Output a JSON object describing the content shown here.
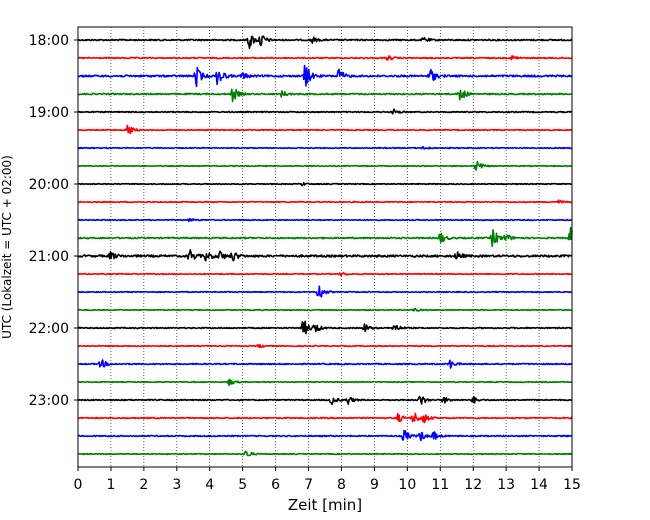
{
  "chart_data": {
    "type": "line",
    "title": "",
    "xlabel": "Zeit  [min]",
    "ylabel": "UTC (Lokalzeit = UTC + 02:00)",
    "xlim": [
      0,
      15
    ],
    "x_ticks": [
      0,
      1,
      2,
      3,
      4,
      5,
      6,
      7,
      8,
      9,
      10,
      11,
      12,
      13,
      14,
      15
    ],
    "y_tick_labels": [
      "18:00",
      "19:00",
      "20:00",
      "21:00",
      "22:00",
      "23:00"
    ],
    "grid": "vertical dotted",
    "trace_interval_minutes": 15,
    "trace_colors": [
      "#000000",
      "#ff0000",
      "#0000ff",
      "#008000"
    ],
    "traces": [
      {
        "start": "18:00",
        "color": "#000000",
        "level": 0.3,
        "events": [
          {
            "t": 5.2,
            "amp": 1.0
          },
          {
            "t": 5.55,
            "amp": 0.8
          },
          {
            "t": 7.1,
            "amp": 0.4
          },
          {
            "t": 10.5,
            "amp": 0.3
          }
        ]
      },
      {
        "start": "18:15",
        "color": "#ff0000",
        "level": 0.25,
        "events": [
          {
            "t": 9.4,
            "amp": 0.3
          },
          {
            "t": 13.2,
            "amp": 0.3
          }
        ]
      },
      {
        "start": "18:30",
        "color": "#0000ff",
        "level": 0.4,
        "events": [
          {
            "t": 3.6,
            "amp": 1.2
          },
          {
            "t": 4.25,
            "amp": 1.3
          },
          {
            "t": 5.0,
            "amp": 0.4
          },
          {
            "t": 6.9,
            "amp": 1.6
          },
          {
            "t": 7.9,
            "amp": 1.0
          },
          {
            "t": 10.7,
            "amp": 0.9
          }
        ]
      },
      {
        "start": "18:45",
        "color": "#008000",
        "level": 0.3,
        "events": [
          {
            "t": 4.7,
            "amp": 0.9
          },
          {
            "t": 6.2,
            "amp": 0.4
          },
          {
            "t": 11.6,
            "amp": 1.0
          }
        ]
      },
      {
        "start": "19:00",
        "color": "#000000",
        "level": 0.25,
        "events": [
          {
            "t": 9.6,
            "amp": 0.3
          }
        ]
      },
      {
        "start": "19:15",
        "color": "#ff0000",
        "level": 0.2,
        "events": [
          {
            "t": 1.5,
            "amp": 0.8
          }
        ]
      },
      {
        "start": "19:30",
        "color": "#0000ff",
        "level": 0.2,
        "events": [
          {
            "t": 10.5,
            "amp": 0.2
          }
        ]
      },
      {
        "start": "19:45",
        "color": "#008000",
        "level": 0.2,
        "events": [
          {
            "t": 12.1,
            "amp": 0.7
          }
        ]
      },
      {
        "start": "20:00",
        "color": "#000000",
        "level": 0.2,
        "events": [
          {
            "t": 6.8,
            "amp": 0.2
          }
        ]
      },
      {
        "start": "20:15",
        "color": "#ff0000",
        "level": 0.2,
        "events": [
          {
            "t": 14.6,
            "amp": 0.2
          }
        ]
      },
      {
        "start": "20:30",
        "color": "#0000ff",
        "level": 0.2,
        "events": [
          {
            "t": 3.4,
            "amp": 0.2
          }
        ]
      },
      {
        "start": "20:45",
        "color": "#008000",
        "level": 0.3,
        "events": [
          {
            "t": 11.0,
            "amp": 0.7
          },
          {
            "t": 12.6,
            "amp": 1.2
          },
          {
            "t": 13.0,
            "amp": 0.5
          },
          {
            "t": 14.95,
            "amp": 1.2
          }
        ]
      },
      {
        "start": "21:00",
        "color": "#000000",
        "level": 0.45,
        "events": [
          {
            "t": 1.0,
            "amp": 0.5
          },
          {
            "t": 3.4,
            "amp": 0.8
          },
          {
            "t": 3.9,
            "amp": 0.6
          },
          {
            "t": 4.3,
            "amp": 0.6
          },
          {
            "t": 4.7,
            "amp": 0.6
          },
          {
            "t": 11.5,
            "amp": 0.5
          }
        ]
      },
      {
        "start": "21:15",
        "color": "#ff0000",
        "level": 0.2,
        "events": [
          {
            "t": 8.0,
            "amp": 0.2
          }
        ]
      },
      {
        "start": "21:30",
        "color": "#0000ff",
        "level": 0.2,
        "events": [
          {
            "t": 7.3,
            "amp": 1.2
          }
        ]
      },
      {
        "start": "21:45",
        "color": "#008000",
        "level": 0.2,
        "events": [
          {
            "t": 10.2,
            "amp": 0.2
          }
        ]
      },
      {
        "start": "22:00",
        "color": "#000000",
        "level": 0.25,
        "events": [
          {
            "t": 6.85,
            "amp": 1.1
          },
          {
            "t": 7.2,
            "amp": 0.6
          },
          {
            "t": 8.7,
            "amp": 0.5
          },
          {
            "t": 9.6,
            "amp": 0.6
          }
        ]
      },
      {
        "start": "22:15",
        "color": "#ff0000",
        "level": 0.2,
        "events": [
          {
            "t": 5.5,
            "amp": 0.2
          }
        ]
      },
      {
        "start": "22:30",
        "color": "#0000ff",
        "level": 0.25,
        "events": [
          {
            "t": 0.7,
            "amp": 0.6
          },
          {
            "t": 11.3,
            "amp": 0.5
          }
        ]
      },
      {
        "start": "22:45",
        "color": "#008000",
        "level": 0.2,
        "events": [
          {
            "t": 4.6,
            "amp": 0.4
          }
        ]
      },
      {
        "start": "23:00",
        "color": "#000000",
        "level": 0.25,
        "events": [
          {
            "t": 7.7,
            "amp": 0.5
          },
          {
            "t": 8.2,
            "amp": 0.5
          },
          {
            "t": 10.4,
            "amp": 0.7
          },
          {
            "t": 11.1,
            "amp": 0.4
          },
          {
            "t": 12.0,
            "amp": 0.4
          }
        ]
      },
      {
        "start": "23:15",
        "color": "#ff0000",
        "level": 0.25,
        "events": [
          {
            "t": 9.7,
            "amp": 0.6
          },
          {
            "t": 10.2,
            "amp": 0.8
          },
          {
            "t": 10.5,
            "amp": 0.6
          }
        ]
      },
      {
        "start": "23:30",
        "color": "#0000ff",
        "level": 0.25,
        "events": [
          {
            "t": 9.9,
            "amp": 0.8
          },
          {
            "t": 10.4,
            "amp": 0.6
          },
          {
            "t": 10.8,
            "amp": 0.5
          }
        ]
      },
      {
        "start": "23:45",
        "color": "#008000",
        "level": 0.2,
        "events": [
          {
            "t": 5.1,
            "amp": 0.5
          }
        ]
      }
    ]
  }
}
